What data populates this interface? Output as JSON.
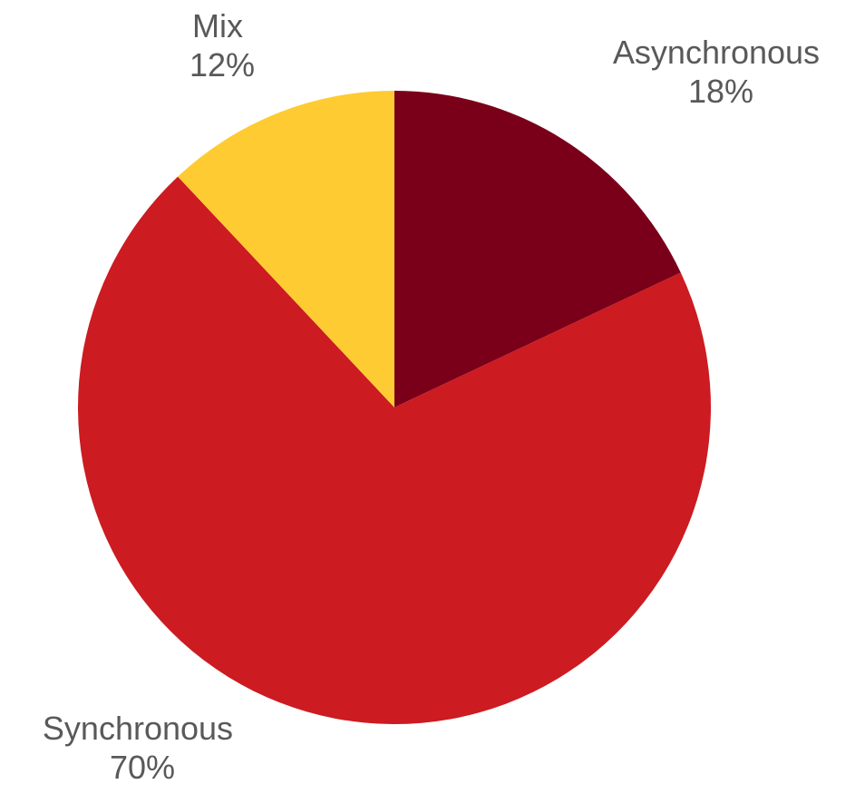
{
  "chart_data": {
    "type": "pie",
    "title": "",
    "start_angle_deg": 0,
    "direction": "clockwise",
    "slices": [
      {
        "name": "Asynchronous",
        "value": 18,
        "label": "18%",
        "color": "#7a0019"
      },
      {
        "name": "Synchronous",
        "value": 70,
        "label": "70%",
        "color": "#cc1b21"
      },
      {
        "name": "Mix",
        "value": 12,
        "label": "12%",
        "color": "#ffcb32"
      }
    ],
    "legend": "none",
    "data_labels": "category-name-and-percent"
  }
}
